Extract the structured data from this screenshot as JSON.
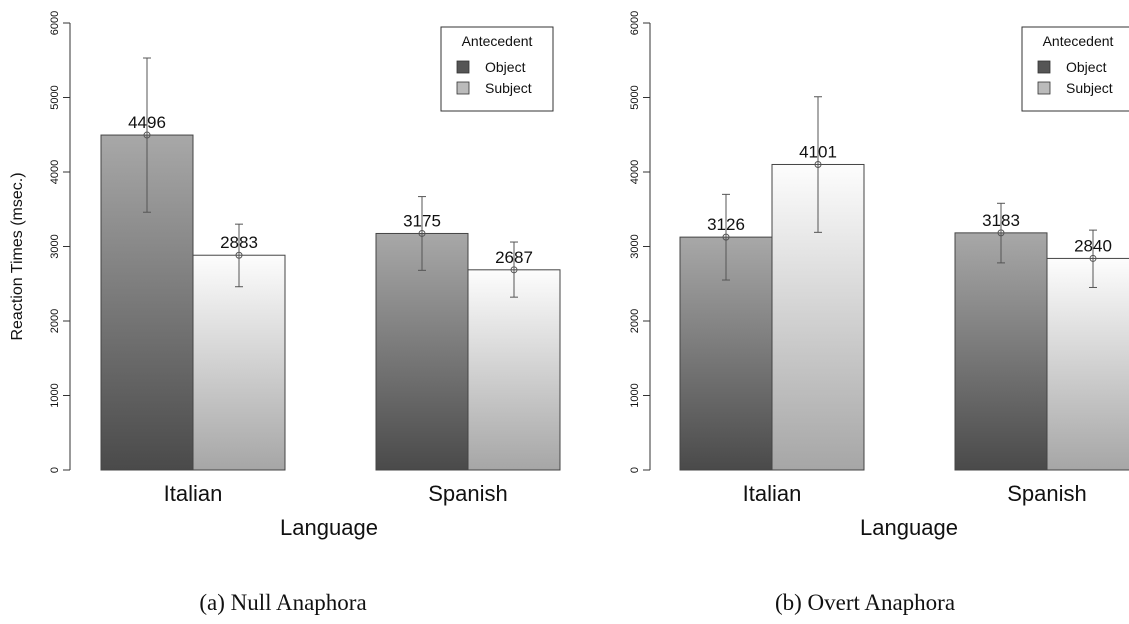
{
  "chart_data": [
    {
      "type": "bar",
      "caption": "(a) Null Anaphora",
      "xlabel": "Language",
      "ylabel": "Reaction Times (msec.)",
      "ylim": [
        0,
        6000
      ],
      "yticks": [
        "0",
        "1000",
        "2000",
        "3000",
        "4000",
        "5000",
        "6000"
      ],
      "categories": [
        "Italian",
        "Spanish"
      ],
      "legend": {
        "title": "Antecedent",
        "position": "top-right"
      },
      "series": [
        {
          "name": "Object",
          "values": [
            4496,
            3175
          ],
          "value_labels": [
            "4496",
            "3175"
          ],
          "error_low": [
            3460,
            2680
          ],
          "error_high": [
            5530,
            3670
          ],
          "color": "#555555"
        },
        {
          "name": "Subject",
          "values": [
            2883,
            2687
          ],
          "value_labels": [
            "2883",
            "2687"
          ],
          "error_low": [
            2460,
            2320
          ],
          "error_high": [
            3300,
            3060
          ],
          "color": "#bbbbbb"
        }
      ]
    },
    {
      "type": "bar",
      "caption": "(b) Overt Anaphora",
      "xlabel": "Language",
      "ylabel": "",
      "ylim": [
        0,
        6000
      ],
      "yticks": [
        "0",
        "1000",
        "2000",
        "3000",
        "4000",
        "5000",
        "6000"
      ],
      "categories": [
        "Italian",
        "Spanish"
      ],
      "legend": {
        "title": "Antecedent",
        "position": "top-right"
      },
      "series": [
        {
          "name": "Object",
          "values": [
            3126,
            3183
          ],
          "value_labels": [
            "3126",
            "3183"
          ],
          "error_low": [
            2550,
            2780
          ],
          "error_high": [
            3700,
            3580
          ],
          "color": "#555555"
        },
        {
          "name": "Subject",
          "values": [
            4101,
            2840
          ],
          "value_labels": [
            "4101",
            "2840"
          ],
          "error_low": [
            3190,
            2450
          ],
          "error_high": [
            5010,
            3220
          ],
          "color": "#bbbbbb"
        }
      ]
    }
  ]
}
